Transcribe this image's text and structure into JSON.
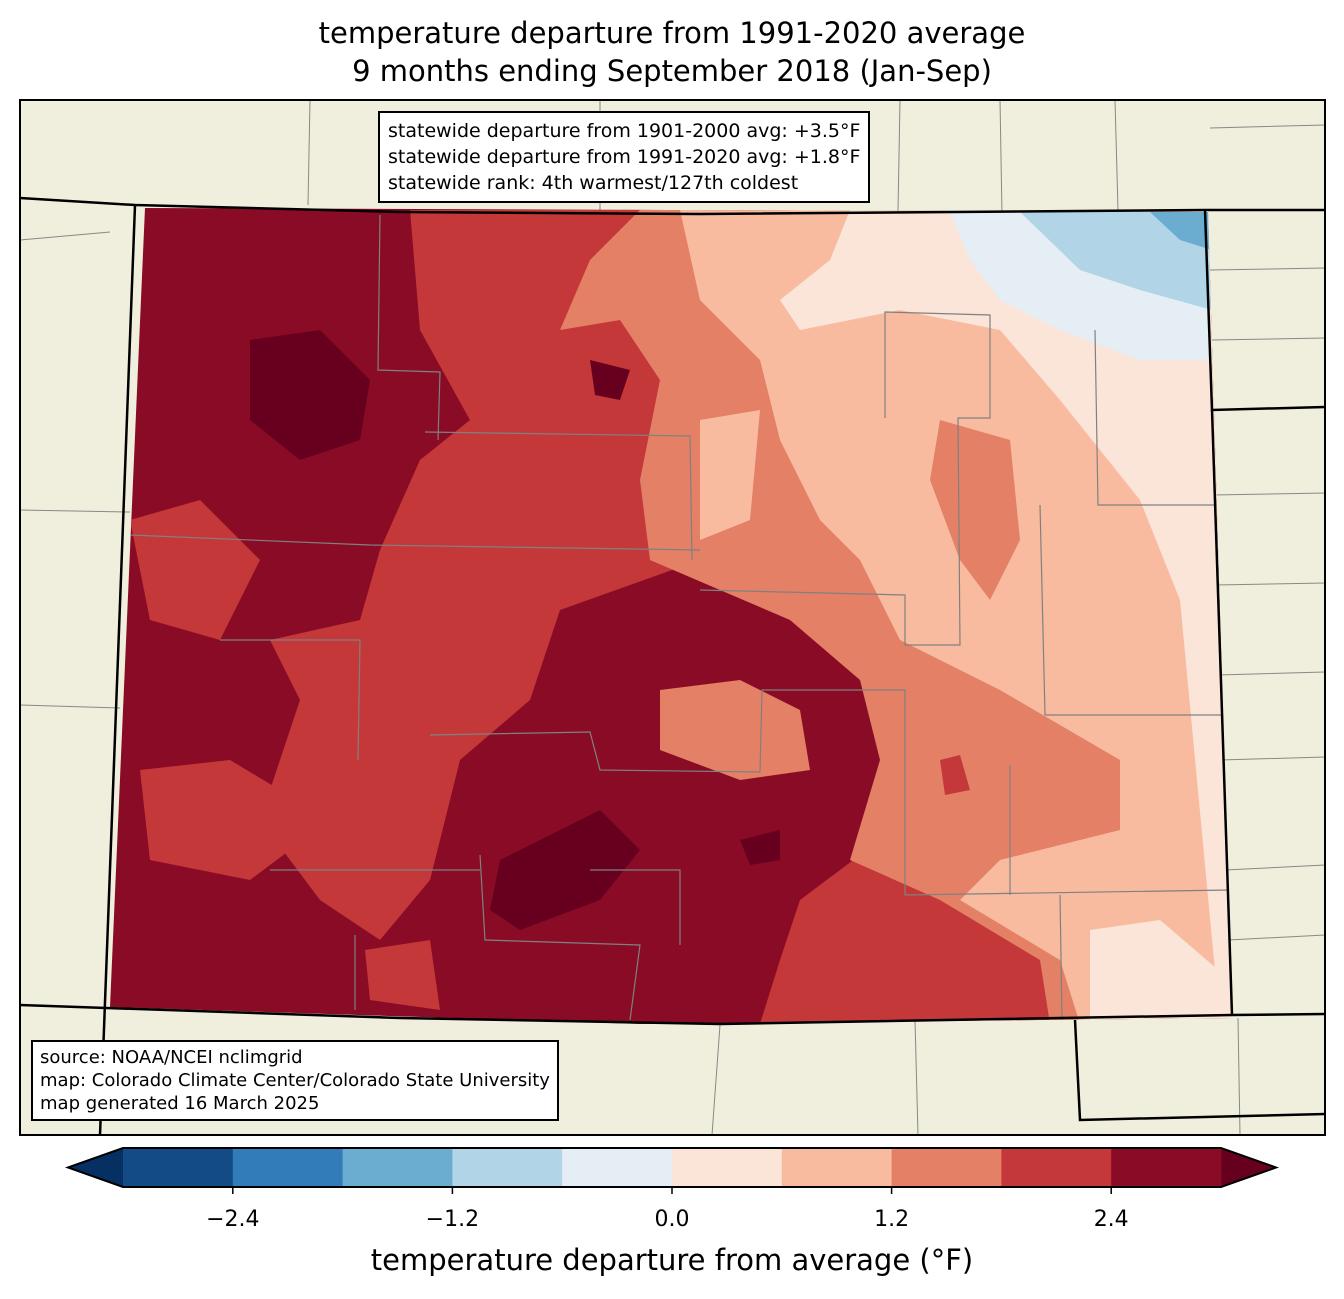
{
  "title": {
    "line1": "temperature departure from 1991-2020 average",
    "line2": "9 months ending September 2018 (Jan-Sep)"
  },
  "stats_box": {
    "line1": "statewide departure from 1901-2000 avg: +3.5°F",
    "line2": "statewide departure from 1991-2020 avg: +1.8°F",
    "line3": "statewide rank: 4th warmest/127th coldest"
  },
  "source_box": {
    "line1": "source: NOAA/NCEI nclimgrid",
    "line2": "map: Colorado Climate Center/Colorado State University",
    "line3": "map generated 16 March 2025"
  },
  "colorbar": {
    "label": "temperature departure from average (°F)",
    "ticks": [
      "−2.4",
      "−1.2",
      "0.0",
      "1.2",
      "2.4"
    ],
    "bounds": [
      -3.0,
      -2.4,
      -1.8,
      -1.2,
      -0.6,
      0.0,
      0.6,
      1.2,
      1.8,
      2.4,
      3.0
    ],
    "colors": [
      "#134b87",
      "#327cba",
      "#6bacd1",
      "#b1d5e7",
      "#e4eef4",
      "#fbe5d8",
      "#f8bba0",
      "#e48066",
      "#c5383a",
      "#8a0b25"
    ],
    "extend_low_color": "#053061",
    "extend_high_color": "#67001f"
  }
}
